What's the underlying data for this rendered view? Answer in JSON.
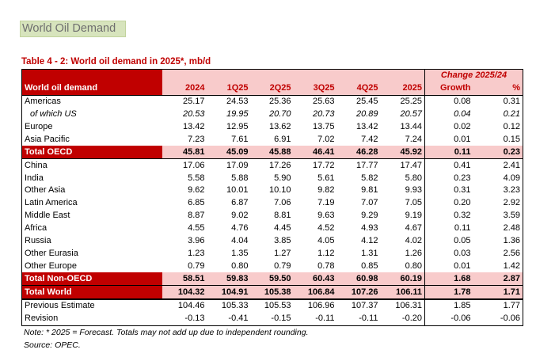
{
  "section_title": "World Oil Demand",
  "table_caption": "Table 4 - 2: World oil demand in 2025*, mb/d",
  "header": {
    "change_label": "Change 2025/24",
    "first_col": "World oil demand",
    "cols": [
      "2024",
      "1Q25",
      "2Q25",
      "3Q25",
      "4Q25",
      "2025"
    ],
    "growth": "Growth",
    "pct": "%"
  },
  "rows": [
    {
      "label": "Americas",
      "values": [
        "25.17",
        "24.53",
        "25.36",
        "25.63",
        "25.45",
        "25.25"
      ],
      "growth": "0.08",
      "pct": "0.31"
    },
    {
      "label": "of which US",
      "values": [
        "20.53",
        "19.95",
        "20.70",
        "20.73",
        "20.89",
        "20.57"
      ],
      "growth": "0.04",
      "pct": "0.21"
    },
    {
      "label": "Europe",
      "values": [
        "13.42",
        "12.95",
        "13.62",
        "13.75",
        "13.42",
        "13.44"
      ],
      "growth": "0.02",
      "pct": "0.12"
    },
    {
      "label": "Asia Pacific",
      "values": [
        "7.23",
        "7.61",
        "6.91",
        "7.02",
        "7.42",
        "7.24"
      ],
      "growth": "0.01",
      "pct": "0.15"
    },
    {
      "label": "Total OECD",
      "values": [
        "45.81",
        "45.09",
        "45.88",
        "46.41",
        "46.28",
        "45.92"
      ],
      "growth": "0.11",
      "pct": "0.23"
    },
    {
      "label": "China",
      "values": [
        "17.06",
        "17.09",
        "17.26",
        "17.72",
        "17.77",
        "17.47"
      ],
      "growth": "0.41",
      "pct": "2.41"
    },
    {
      "label": "India",
      "values": [
        "5.58",
        "5.88",
        "5.90",
        "5.61",
        "5.82",
        "5.80"
      ],
      "growth": "0.23",
      "pct": "4.09"
    },
    {
      "label": "Other Asia",
      "values": [
        "9.62",
        "10.01",
        "10.10",
        "9.82",
        "9.81",
        "9.93"
      ],
      "growth": "0.31",
      "pct": "3.23"
    },
    {
      "label": "Latin America",
      "values": [
        "6.85",
        "6.87",
        "7.06",
        "7.19",
        "7.07",
        "7.05"
      ],
      "growth": "0.20",
      "pct": "2.92"
    },
    {
      "label": "Middle East",
      "values": [
        "8.87",
        "9.02",
        "8.81",
        "9.63",
        "9.29",
        "9.19"
      ],
      "growth": "0.32",
      "pct": "3.59"
    },
    {
      "label": "Africa",
      "values": [
        "4.55",
        "4.76",
        "4.45",
        "4.52",
        "4.93",
        "4.67"
      ],
      "growth": "0.11",
      "pct": "2.48"
    },
    {
      "label": "Russia",
      "values": [
        "3.96",
        "4.04",
        "3.85",
        "4.05",
        "4.12",
        "4.02"
      ],
      "growth": "0.05",
      "pct": "1.36"
    },
    {
      "label": "Other Eurasia",
      "values": [
        "1.23",
        "1.35",
        "1.27",
        "1.12",
        "1.31",
        "1.26"
      ],
      "growth": "0.03",
      "pct": "2.56"
    },
    {
      "label": "Other Europe",
      "values": [
        "0.79",
        "0.80",
        "0.79",
        "0.78",
        "0.85",
        "0.80"
      ],
      "growth": "0.01",
      "pct": "1.42"
    },
    {
      "label": "Total Non-OECD",
      "values": [
        "58.51",
        "59.83",
        "59.50",
        "60.43",
        "60.98",
        "60.19"
      ],
      "growth": "1.68",
      "pct": "2.87"
    },
    {
      "label": "Total World",
      "values": [
        "104.32",
        "104.91",
        "105.38",
        "106.84",
        "107.26",
        "106.11"
      ],
      "growth": "1.78",
      "pct": "1.71"
    },
    {
      "label": "Previous Estimate",
      "values": [
        "104.46",
        "105.33",
        "105.53",
        "106.96",
        "107.37",
        "106.31"
      ],
      "growth": "1.85",
      "pct": "1.77"
    },
    {
      "label": "Revision",
      "values": [
        "-0.13",
        "-0.41",
        "-0.15",
        "-0.11",
        "-0.11",
        "-0.20"
      ],
      "growth": "-0.06",
      "pct": "-0.06"
    }
  ],
  "note": "Note: * 2025 = Forecast. Totals may not add up due to independent rounding.",
  "source": "Source: OPEC."
}
